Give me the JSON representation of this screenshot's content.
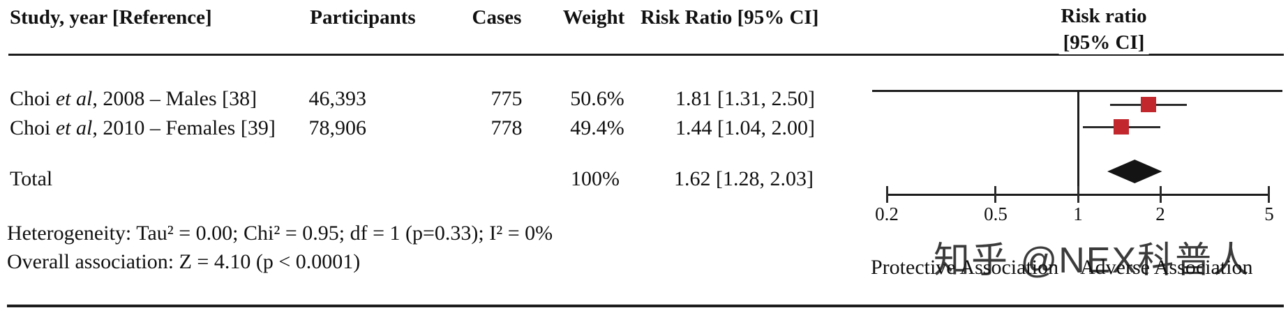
{
  "table": {
    "headers": {
      "study": "Study, year [Reference]",
      "participants": "Participants",
      "cases": "Cases",
      "weight": "Weight",
      "risk_ratio": "Risk Ratio [95% CI]"
    },
    "plot_header": {
      "line1": "Risk ratio",
      "line2": "[95% CI]"
    },
    "rows": [
      {
        "study_prefix": "Choi ",
        "study_italic": "et al",
        "study_suffix": ", 2008 – Males [38]",
        "participants": "46,393",
        "cases": "775",
        "weight": "50.6%",
        "risk_ratio": "1.81 [1.31, 2.50]"
      },
      {
        "study_prefix": "Choi ",
        "study_italic": "et al",
        "study_suffix": ", 2010 – Females [39]",
        "participants": "78,906",
        "cases": "778",
        "weight": "49.4%",
        "risk_ratio": "1.44 [1.04, 2.00]"
      }
    ],
    "total_row": {
      "label": "Total",
      "weight": "100%",
      "risk_ratio": "1.62 [1.28, 2.03]"
    }
  },
  "footnotes": {
    "heterogeneity": "Heterogeneity: Tau² = 0.00; Chi² = 0.95; df = 1 (p=0.33); I² = 0%",
    "overall": "Overall association: Z = 4.10 (p < 0.0001)"
  },
  "region_labels": {
    "left": "Protective Association",
    "right": "Adverse Association"
  },
  "watermark": "知乎 @NEX科普人",
  "colors": {
    "marker_square": "#c1272d",
    "diamond": "#141414",
    "line": "#2b2b2b",
    "text": "#111111",
    "watermark": "#bdbdbd"
  },
  "chart_data": {
    "type": "forest",
    "x_scale": "log",
    "x_ticks": [
      0.2,
      0.5,
      1,
      2,
      5
    ],
    "x_range": [
      0.2,
      5
    ],
    "reference_line": 1,
    "studies": [
      {
        "name": "Choi et al, 2008 – Males [38]",
        "rr": 1.81,
        "ci_low": 1.31,
        "ci_high": 2.5,
        "weight_pct": 50.6
      },
      {
        "name": "Choi et al, 2010 – Females [39]",
        "rr": 1.44,
        "ci_low": 1.04,
        "ci_high": 2.0,
        "weight_pct": 49.4
      }
    ],
    "total": {
      "name": "Total",
      "rr": 1.62,
      "ci_low": 1.28,
      "ci_high": 2.03,
      "weight_pct": 100
    },
    "stats": {
      "tau2": 0.0,
      "chi2": 0.95,
      "df": 1,
      "p_heterogeneity": 0.33,
      "i2_pct": 0,
      "z": 4.1,
      "p_overall": "< 0.0001"
    },
    "region_labels": {
      "left_of_ref": "Protective Association",
      "right_of_ref": "Adverse Association"
    },
    "grid": false,
    "legend": false
  }
}
